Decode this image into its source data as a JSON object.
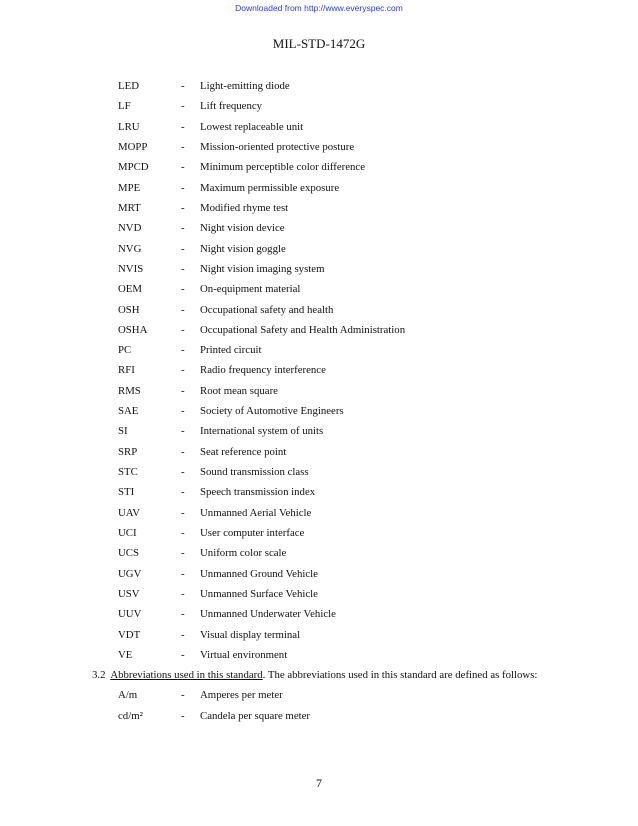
{
  "watermark": "Downloaded from http://www.everyspec.com",
  "header": "MIL-STD-1472G",
  "acronyms": [
    {
      "abbr": "LED",
      "dash": "-",
      "def": "Light-emitting diode"
    },
    {
      "abbr": "LF",
      "dash": "-",
      "def": "Lift frequency"
    },
    {
      "abbr": "LRU",
      "dash": "-",
      "def": "Lowest replaceable unit"
    },
    {
      "abbr": "MOPP",
      "dash": "-",
      "def": "Mission-oriented protective posture"
    },
    {
      "abbr": "MPCD",
      "dash": "-",
      "def": "Minimum perceptible color difference"
    },
    {
      "abbr": "MPE",
      "dash": "-",
      "def": "Maximum permissible exposure"
    },
    {
      "abbr": "MRT",
      "dash": "-",
      "def": "Modified rhyme test"
    },
    {
      "abbr": "NVD",
      "dash": "-",
      "def": "Night vision device"
    },
    {
      "abbr": "NVG",
      "dash": "-",
      "def": "Night vision goggle"
    },
    {
      "abbr": "NVIS",
      "dash": "-",
      "def": "Night vision imaging system"
    },
    {
      "abbr": "OEM",
      "dash": "-",
      "def": "On-equipment material"
    },
    {
      "abbr": "OSH",
      "dash": "-",
      "def": "Occupational safety and health"
    },
    {
      "abbr": "OSHA",
      "dash": "-",
      "def": "Occupational Safety and Health Administration"
    },
    {
      "abbr": "PC",
      "dash": "-",
      "def": "Printed circuit"
    },
    {
      "abbr": "RFI",
      "dash": "-",
      "def": "Radio frequency interference"
    },
    {
      "abbr": "RMS",
      "dash": "-",
      "def": "Root mean square"
    },
    {
      "abbr": "SAE",
      "dash": "-",
      "def": "Society of Automotive Engineers"
    },
    {
      "abbr": "SI",
      "dash": "-",
      "def": "International system of units"
    },
    {
      "abbr": "SRP",
      "dash": "-",
      "def": "Seat reference point"
    },
    {
      "abbr": "STC",
      "dash": "-",
      "def": "Sound transmission class"
    },
    {
      "abbr": "STI",
      "dash": "-",
      "def": "Speech transmission index"
    },
    {
      "abbr": "UAV",
      "dash": "-",
      "def": "Unmanned Aerial Vehicle"
    },
    {
      "abbr": "UCI",
      "dash": "-",
      "def": "User computer interface"
    },
    {
      "abbr": "UCS",
      "dash": "-",
      "def": "Uniform color scale"
    },
    {
      "abbr": "UGV",
      "dash": "-",
      "def": "Unmanned Ground Vehicle"
    },
    {
      "abbr": "USV",
      "dash": "-",
      "def": "Unmanned Surface Vehicle"
    },
    {
      "abbr": "UUV",
      "dash": "-",
      "def": "Unmanned Underwater Vehicle"
    },
    {
      "abbr": "VDT",
      "dash": "-",
      "def": "Visual display terminal"
    },
    {
      "abbr": "VE",
      "dash": "-",
      "def": "Virtual environment"
    }
  ],
  "section": {
    "number": "3.2",
    "title": "Abbreviations used in this standard",
    "text": ".  The abbreviations used in this standard are defined as follows:"
  },
  "abbreviations": [
    {
      "abbr": "A/m",
      "dash": "-",
      "def": "Amperes per meter"
    },
    {
      "abbr": "cd/m²",
      "dash": "-",
      "def": "Candela per square meter"
    }
  ],
  "page_number": "7"
}
